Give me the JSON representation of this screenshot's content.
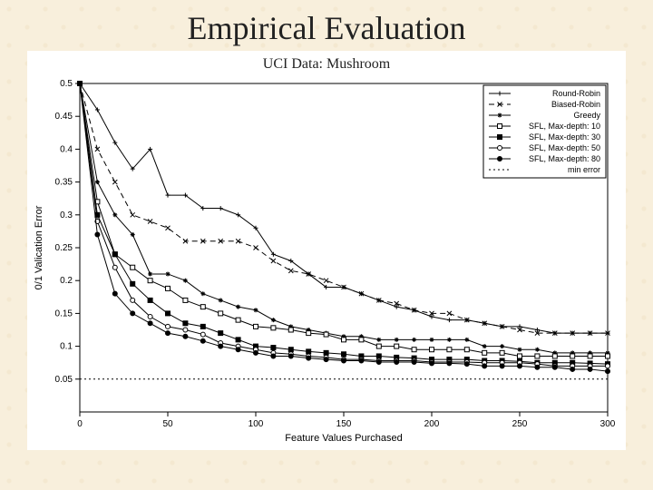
{
  "title": "Empirical Evaluation",
  "subtitle": "UCI Data: Mushroom",
  "chart": {
    "type": "line",
    "background_color": "#ffffff",
    "page_bg": "#f8efdc",
    "xlabel": "Feature Values Purchased",
    "ylabel": "0/1 Valication Error",
    "label_fontsize": 11,
    "tick_fontsize": 10,
    "xlim": [
      0,
      300
    ],
    "ylim": [
      0,
      0.5
    ],
    "xtick_step": 50,
    "ytick_step": 0.05,
    "xticks": [
      0,
      50,
      100,
      150,
      200,
      250,
      300
    ],
    "yticks": [
      0.05,
      0.1,
      0.15,
      0.2,
      0.25,
      0.3,
      0.35,
      0.4,
      0.45,
      0.5
    ],
    "grid": false,
    "border_color": "#000000",
    "line_color": "#000000",
    "min_error_color": "#000000",
    "series": [
      {
        "name": "Round-Robin",
        "marker": "plus",
        "dash": "solid",
        "x": [
          0,
          10,
          20,
          30,
          40,
          50,
          60,
          70,
          80,
          90,
          100,
          110,
          120,
          130,
          140,
          150,
          160,
          170,
          180,
          190,
          200,
          210,
          220,
          230,
          240,
          250,
          260,
          270,
          280,
          290,
          300
        ],
        "y": [
          0.5,
          0.46,
          0.41,
          0.37,
          0.4,
          0.33,
          0.33,
          0.31,
          0.31,
          0.3,
          0.28,
          0.24,
          0.23,
          0.21,
          0.19,
          0.19,
          0.18,
          0.17,
          0.16,
          0.155,
          0.145,
          0.14,
          0.14,
          0.135,
          0.13,
          0.13,
          0.125,
          0.12,
          0.12,
          0.12,
          0.12
        ]
      },
      {
        "name": "Biased-Robin",
        "marker": "cross",
        "dash": "dash",
        "x": [
          0,
          10,
          20,
          30,
          40,
          50,
          60,
          70,
          80,
          90,
          100,
          110,
          120,
          130,
          140,
          150,
          160,
          170,
          180,
          190,
          200,
          210,
          220,
          230,
          240,
          250,
          260,
          270,
          280,
          290,
          300
        ],
        "y": [
          0.5,
          0.4,
          0.35,
          0.3,
          0.29,
          0.28,
          0.26,
          0.26,
          0.26,
          0.26,
          0.25,
          0.23,
          0.215,
          0.21,
          0.2,
          0.19,
          0.18,
          0.17,
          0.165,
          0.155,
          0.15,
          0.15,
          0.14,
          0.135,
          0.13,
          0.125,
          0.12,
          0.12,
          0.12,
          0.12,
          0.12
        ]
      },
      {
        "name": "Greedy",
        "marker": "star",
        "dash": "solid",
        "x": [
          0,
          10,
          20,
          30,
          40,
          50,
          60,
          70,
          80,
          90,
          100,
          110,
          120,
          130,
          140,
          150,
          160,
          170,
          180,
          190,
          200,
          210,
          220,
          230,
          240,
          250,
          260,
          270,
          280,
          290,
          300
        ],
        "y": [
          0.5,
          0.35,
          0.3,
          0.27,
          0.21,
          0.21,
          0.2,
          0.18,
          0.17,
          0.16,
          0.155,
          0.14,
          0.13,
          0.125,
          0.12,
          0.115,
          0.115,
          0.11,
          0.11,
          0.11,
          0.11,
          0.11,
          0.11,
          0.1,
          0.1,
          0.095,
          0.095,
          0.09,
          0.09,
          0.09,
          0.09
        ]
      },
      {
        "name": "SFL, Max-depth: 10",
        "marker": "open-square",
        "dash": "solid",
        "x": [
          0,
          10,
          20,
          30,
          40,
          50,
          60,
          70,
          80,
          90,
          100,
          110,
          120,
          130,
          140,
          150,
          160,
          170,
          180,
          190,
          200,
          210,
          220,
          230,
          240,
          250,
          260,
          270,
          280,
          290,
          300
        ],
        "y": [
          0.5,
          0.32,
          0.24,
          0.22,
          0.2,
          0.188,
          0.17,
          0.16,
          0.15,
          0.14,
          0.13,
          0.128,
          0.125,
          0.12,
          0.118,
          0.11,
          0.11,
          0.1,
          0.1,
          0.095,
          0.095,
          0.095,
          0.095,
          0.09,
          0.09,
          0.085,
          0.085,
          0.085,
          0.085,
          0.085,
          0.085
        ]
      },
      {
        "name": "SFL, Max-depth: 30",
        "marker": "filled-square",
        "dash": "solid",
        "x": [
          0,
          10,
          20,
          30,
          40,
          50,
          60,
          70,
          80,
          90,
          100,
          110,
          120,
          130,
          140,
          150,
          160,
          170,
          180,
          190,
          200,
          210,
          220,
          230,
          240,
          250,
          260,
          270,
          280,
          290,
          300
        ],
        "y": [
          0.5,
          0.3,
          0.24,
          0.195,
          0.17,
          0.15,
          0.135,
          0.13,
          0.12,
          0.11,
          0.1,
          0.098,
          0.095,
          0.092,
          0.09,
          0.088,
          0.085,
          0.085,
          0.083,
          0.082,
          0.08,
          0.08,
          0.08,
          0.078,
          0.078,
          0.077,
          0.075,
          0.075,
          0.075,
          0.074,
          0.073
        ]
      },
      {
        "name": "SFL, Max-depth: 50",
        "marker": "open-circle",
        "dash": "solid",
        "x": [
          0,
          10,
          20,
          30,
          40,
          50,
          60,
          70,
          80,
          90,
          100,
          110,
          120,
          130,
          140,
          150,
          160,
          170,
          180,
          190,
          200,
          210,
          220,
          230,
          240,
          250,
          260,
          270,
          280,
          290,
          300
        ],
        "y": [
          0.5,
          0.29,
          0.22,
          0.17,
          0.145,
          0.13,
          0.125,
          0.118,
          0.105,
          0.1,
          0.095,
          0.09,
          0.088,
          0.085,
          0.083,
          0.08,
          0.08,
          0.078,
          0.078,
          0.078,
          0.076,
          0.076,
          0.076,
          0.075,
          0.075,
          0.075,
          0.073,
          0.07,
          0.07,
          0.07,
          0.07
        ]
      },
      {
        "name": "SFL, Max-depth: 80",
        "marker": "filled-circle",
        "dash": "solid",
        "x": [
          0,
          10,
          20,
          30,
          40,
          50,
          60,
          70,
          80,
          90,
          100,
          110,
          120,
          130,
          140,
          150,
          160,
          170,
          180,
          190,
          200,
          210,
          220,
          230,
          240,
          250,
          260,
          270,
          280,
          290,
          300
        ],
        "y": [
          0.5,
          0.27,
          0.18,
          0.15,
          0.135,
          0.12,
          0.115,
          0.108,
          0.1,
          0.095,
          0.09,
          0.085,
          0.085,
          0.082,
          0.08,
          0.078,
          0.078,
          0.076,
          0.076,
          0.076,
          0.074,
          0.074,
          0.073,
          0.07,
          0.07,
          0.07,
          0.068,
          0.068,
          0.065,
          0.065,
          0.062
        ]
      },
      {
        "name": "min error",
        "marker": "none",
        "dash": "dot",
        "x": [
          0,
          300
        ],
        "y": [
          0.05,
          0.05
        ]
      }
    ],
    "legend": {
      "position": "top-right",
      "fontsize": 9
    }
  }
}
